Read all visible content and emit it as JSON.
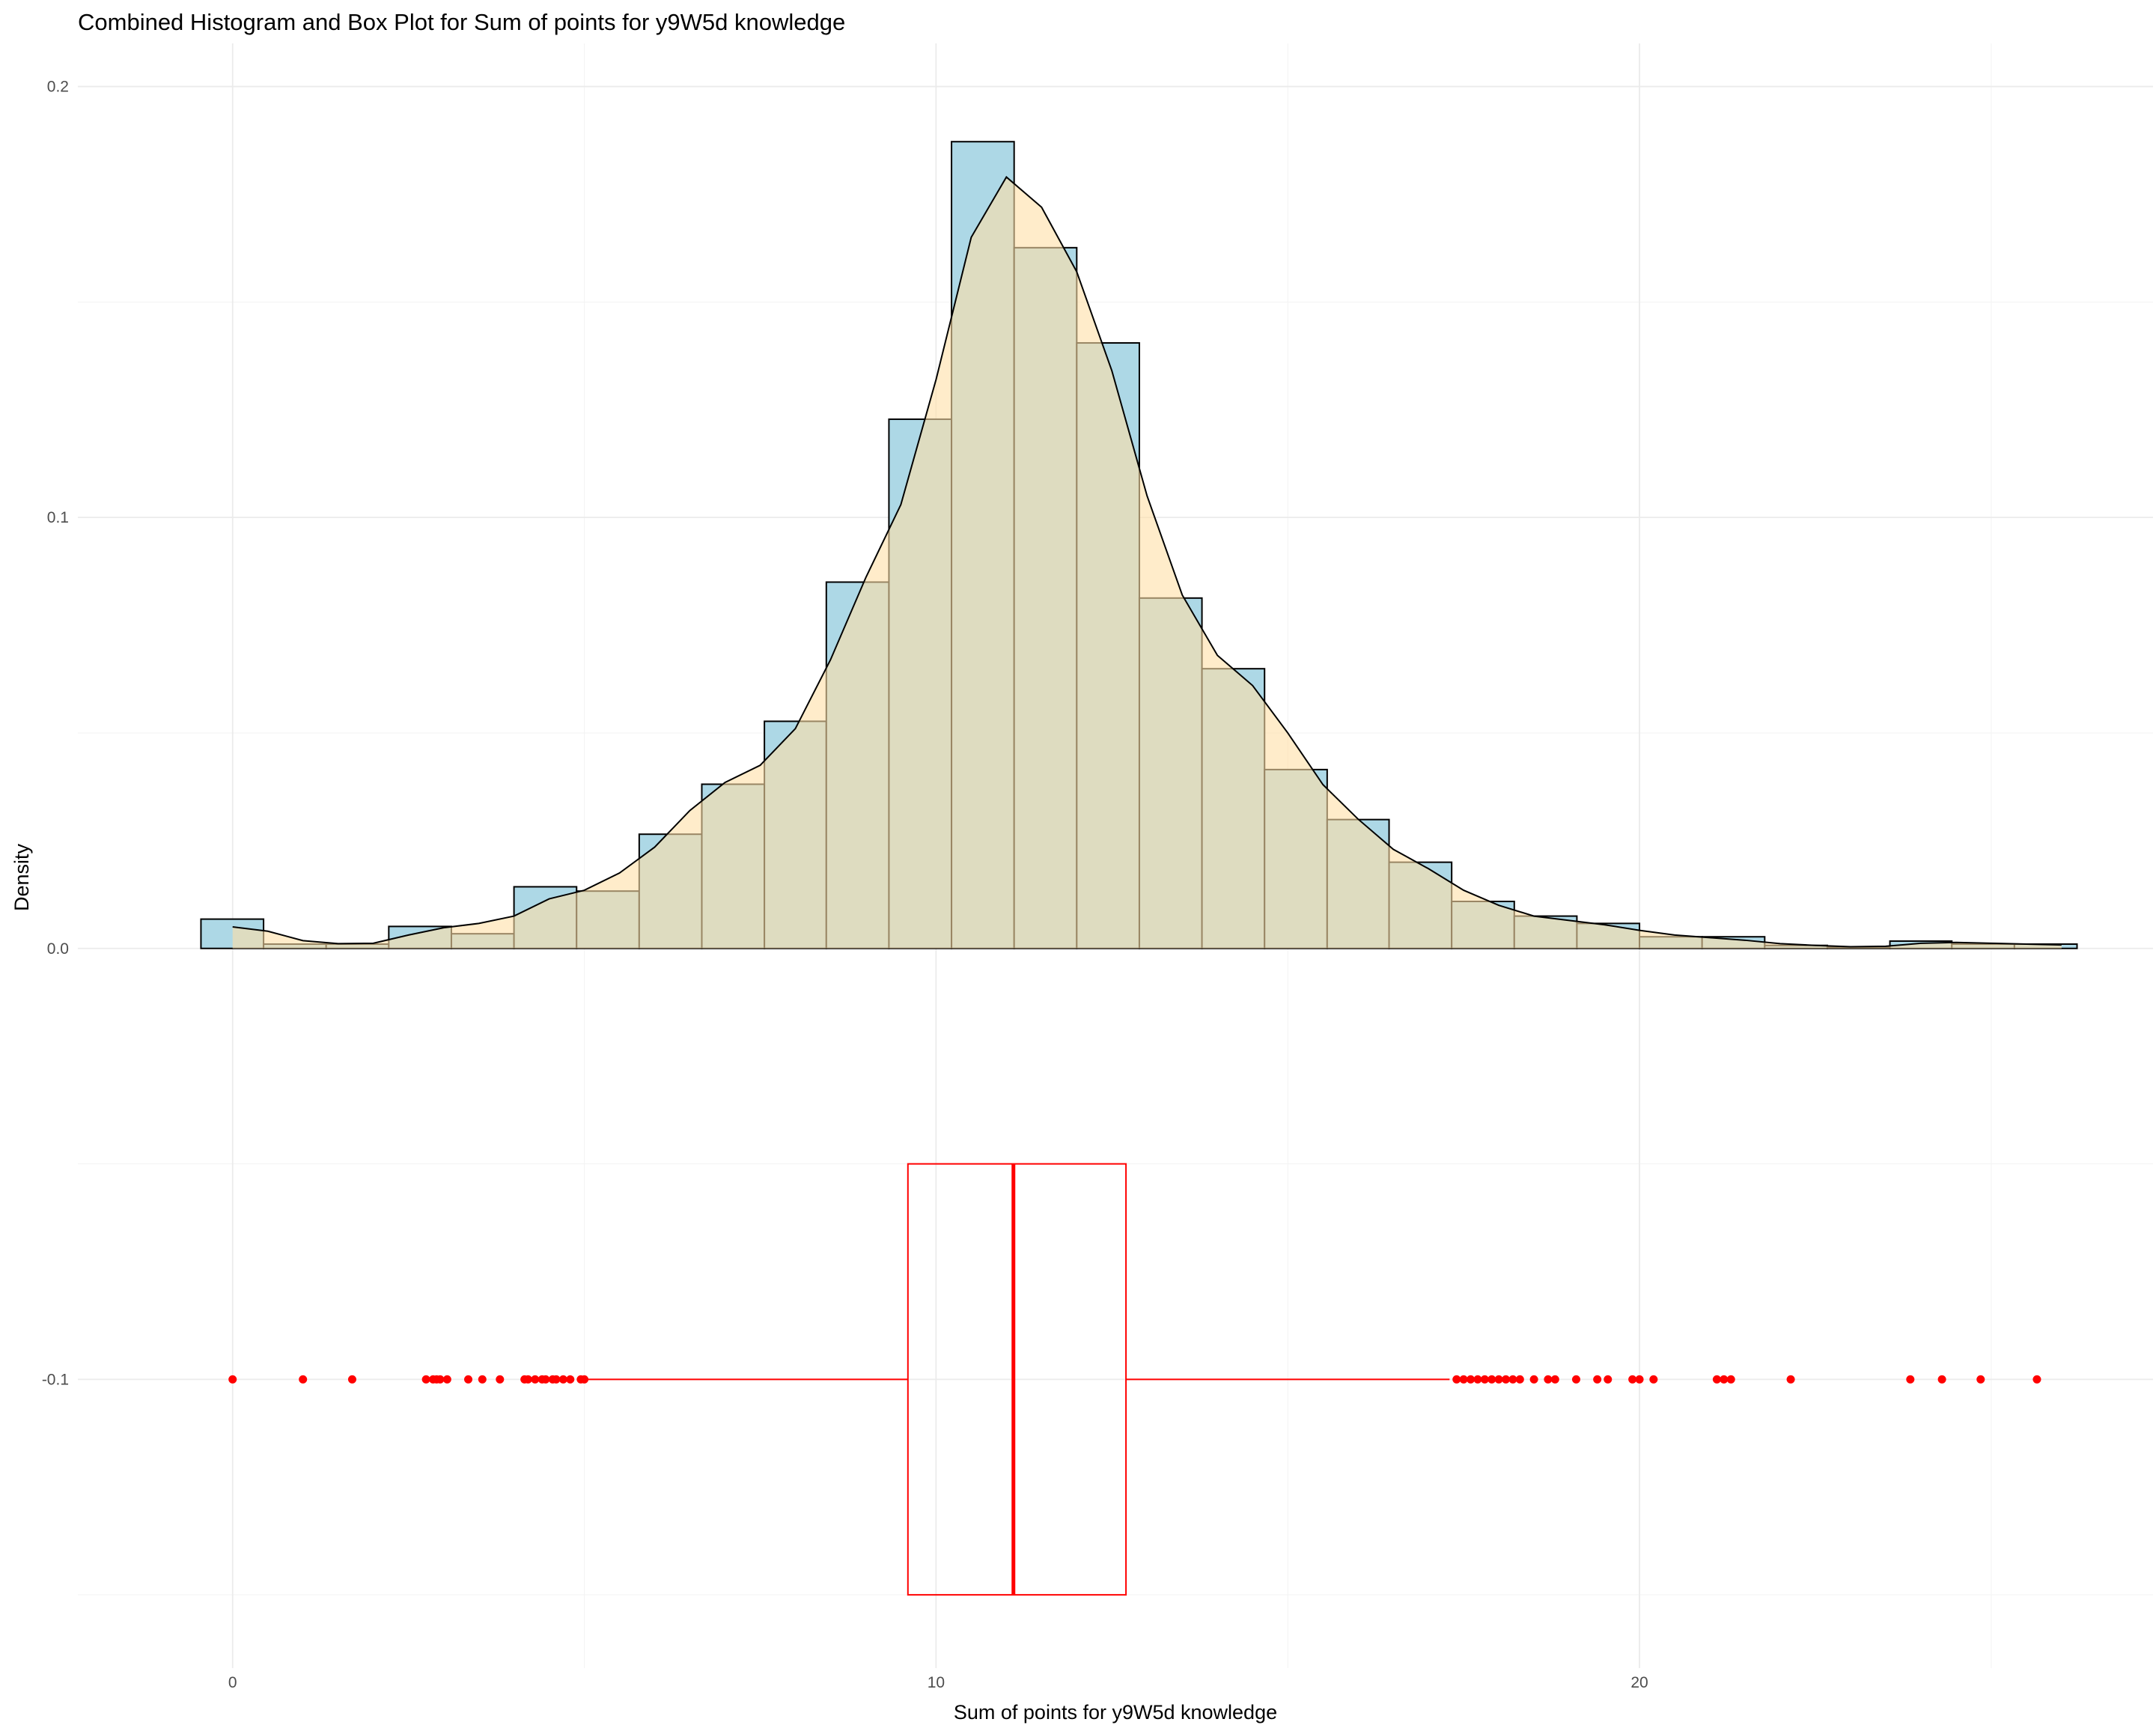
{
  "chart_data": {
    "type": "histogram+density+boxplot",
    "title": "Combined Histogram and Box Plot for Sum of points for y9W5d knowledge",
    "xlabel": "Sum of points for y9W5d knowledge",
    "ylabel": "Density",
    "x_ticks": [
      "0",
      "10",
      "20"
    ],
    "x_tick_values": [
      0,
      10,
      20
    ],
    "y_ticks": [
      "-0.1",
      "0.0",
      "0.1",
      "0.2"
    ],
    "y_tick_values": [
      -0.1,
      0.0,
      0.1,
      0.2
    ],
    "xlim": [
      -2.2,
      27.3
    ],
    "ylim": [
      -0.167,
      0.21
    ],
    "grid": true,
    "histogram": {
      "fill": "#ADD8E6",
      "stroke": "#000000",
      "bins": [
        {
          "x0": -0.45,
          "x1": 0.44,
          "density": 0.0068
        },
        {
          "x0": 0.44,
          "x1": 1.33,
          "density": 0.001
        },
        {
          "x0": 1.33,
          "x1": 2.22,
          "density": 0.001
        },
        {
          "x0": 2.22,
          "x1": 3.11,
          "density": 0.0051
        },
        {
          "x0": 3.11,
          "x1": 4.0,
          "density": 0.0034
        },
        {
          "x0": 4.0,
          "x1": 4.89,
          "density": 0.0143
        },
        {
          "x0": 4.89,
          "x1": 5.78,
          "density": 0.0133
        },
        {
          "x0": 5.78,
          "x1": 6.67,
          "density": 0.0265
        },
        {
          "x0": 6.67,
          "x1": 7.56,
          "density": 0.0381
        },
        {
          "x0": 7.56,
          "x1": 8.44,
          "density": 0.0527
        },
        {
          "x0": 8.44,
          "x1": 9.33,
          "density": 0.085
        },
        {
          "x0": 9.33,
          "x1": 10.22,
          "density": 0.1228
        },
        {
          "x0": 10.22,
          "x1": 11.11,
          "density": 0.1872
        },
        {
          "x0": 11.11,
          "x1": 12.0,
          "density": 0.1626
        },
        {
          "x0": 12.0,
          "x1": 12.89,
          "density": 0.1405
        },
        {
          "x0": 12.89,
          "x1": 13.78,
          "density": 0.0813
        },
        {
          "x0": 13.78,
          "x1": 14.67,
          "density": 0.0649
        },
        {
          "x0": 14.67,
          "x1": 15.56,
          "density": 0.0415
        },
        {
          "x0": 15.56,
          "x1": 16.44,
          "density": 0.0299
        },
        {
          "x0": 16.44,
          "x1": 17.33,
          "density": 0.02
        },
        {
          "x0": 17.33,
          "x1": 18.22,
          "density": 0.0109
        },
        {
          "x0": 18.22,
          "x1": 19.11,
          "density": 0.0075
        },
        {
          "x0": 19.11,
          "x1": 20.0,
          "density": 0.0058
        },
        {
          "x0": 20.0,
          "x1": 20.89,
          "density": 0.0027
        },
        {
          "x0": 20.89,
          "x1": 21.78,
          "density": 0.0027
        },
        {
          "x0": 21.78,
          "x1": 22.67,
          "density": 0.0007
        },
        {
          "x0": 22.67,
          "x1": 23.56,
          "density": 0.0003
        },
        {
          "x0": 23.56,
          "x1": 24.44,
          "density": 0.0017
        },
        {
          "x0": 24.44,
          "x1": 25.33,
          "density": 0.001
        },
        {
          "x0": 25.33,
          "x1": 26.22,
          "density": 0.001
        }
      ]
    },
    "density_curve": {
      "fill": "#FFE0A6",
      "stroke": "#000000",
      "x": [
        0.0,
        0.5,
        1.0,
        1.5,
        2.0,
        2.5,
        3.0,
        3.5,
        4.0,
        4.5,
        5.0,
        5.5,
        6.0,
        6.5,
        7.0,
        7.5,
        8.0,
        8.5,
        9.0,
        9.5,
        10.0,
        10.5,
        11.0,
        11.5,
        12.0,
        12.5,
        13.0,
        13.5,
        14.0,
        14.5,
        15.0,
        15.5,
        16.0,
        16.5,
        17.0,
        17.5,
        18.0,
        18.5,
        19.0,
        19.5,
        20.0,
        20.5,
        21.0,
        21.5,
        22.0,
        22.5,
        23.0,
        23.5,
        24.0,
        24.5,
        25.0,
        25.5,
        26.0
      ],
      "y": [
        0.005,
        0.004,
        0.0018,
        0.0011,
        0.0012,
        0.0031,
        0.0048,
        0.0058,
        0.0075,
        0.0115,
        0.0135,
        0.0175,
        0.0235,
        0.032,
        0.0385,
        0.0425,
        0.051,
        0.067,
        0.086,
        0.103,
        0.132,
        0.165,
        0.179,
        0.172,
        0.157,
        0.134,
        0.105,
        0.082,
        0.068,
        0.061,
        0.05,
        0.038,
        0.03,
        0.023,
        0.0185,
        0.0135,
        0.01,
        0.0075,
        0.0065,
        0.0055,
        0.0042,
        0.0031,
        0.0025,
        0.0019,
        0.0011,
        0.0007,
        0.0004,
        0.0005,
        0.0012,
        0.0014,
        0.0012,
        0.001,
        0.0008
      ]
    },
    "boxplot": {
      "color": "#FF0000",
      "y_center": -0.1,
      "box_y_range": [
        -0.15,
        -0.05
      ],
      "q1": 9.6,
      "median": 11.1,
      "q3": 12.7,
      "whisker_low": 5.0,
      "whisker_high": 17.3,
      "outliers": [
        0.0,
        1.0,
        1.7,
        2.75,
        2.85,
        2.9,
        2.95,
        3.05,
        3.35,
        3.55,
        3.8,
        4.15,
        4.2,
        4.3,
        4.4,
        4.45,
        4.55,
        4.6,
        4.7,
        4.8,
        4.95,
        5.0,
        17.4,
        17.5,
        17.6,
        17.7,
        17.8,
        17.9,
        18.0,
        18.1,
        18.2,
        18.3,
        18.5,
        18.7,
        18.8,
        19.1,
        19.4,
        19.55,
        19.9,
        20.0,
        20.2,
        21.1,
        21.2,
        21.3,
        22.15,
        23.85,
        24.3,
        24.85,
        25.65
      ]
    }
  }
}
